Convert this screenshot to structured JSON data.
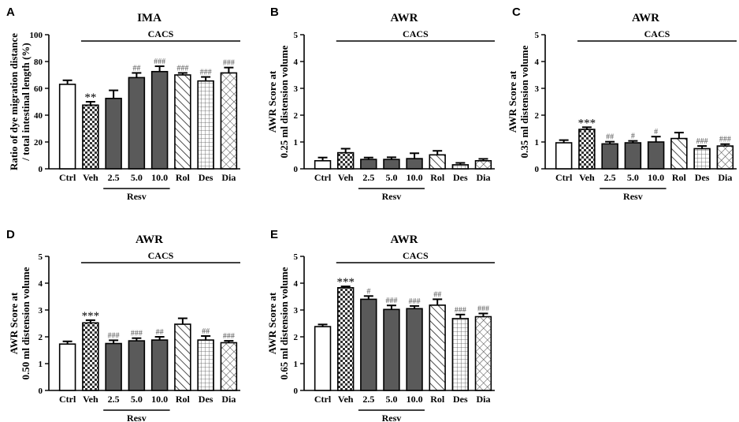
{
  "colors": {
    "dark_bar": "#5a5a5a",
    "outline": "#000000",
    "white": "#ffffff"
  },
  "chart_data": [
    {
      "panel": "A",
      "type": "bar",
      "title": "IMA",
      "ylabel_lines": [
        "Ratio of dye migration distance",
        "/ total intestinal length (%)"
      ],
      "ylim": [
        0,
        100
      ],
      "yticks": [
        "0",
        "20",
        "40",
        "60",
        "80",
        "100"
      ],
      "ytick_values": [
        0,
        20,
        40,
        60,
        80,
        100
      ],
      "categories": [
        "Ctrl",
        "Veh",
        "2.5",
        "5.0",
        "10.0",
        "Rol",
        "Des",
        "Dia"
      ],
      "patterns": [
        "white",
        "check",
        "dark",
        "dark",
        "dark",
        "hatch",
        "grid",
        "cross"
      ],
      "values": [
        63,
        47.5,
        52.5,
        68,
        72.5,
        70,
        65.5,
        71.5
      ],
      "errors": [
        3,
        2.5,
        6,
        3.5,
        4,
        1.5,
        3,
        4
      ],
      "significance": [
        "",
        "**",
        "",
        "##",
        "###",
        "###",
        "###",
        "###"
      ],
      "group_label": "CACS",
      "group_span": [
        1,
        7
      ],
      "sub_label": "Resv",
      "sub_span": [
        2,
        4
      ]
    },
    {
      "panel": "B",
      "type": "bar",
      "title": "AWR",
      "ylabel_lines": [
        "AWR Score at",
        "0.25 ml distension volume"
      ],
      "ylim": [
        0,
        5
      ],
      "yticks": [
        "0",
        "1",
        "2",
        "3",
        "4",
        "5"
      ],
      "ytick_values": [
        0,
        1,
        2,
        3,
        4,
        5
      ],
      "categories": [
        "Ctrl",
        "Veh",
        "2.5",
        "5.0",
        "10.0",
        "Rol",
        "Des",
        "Dia"
      ],
      "patterns": [
        "white",
        "check",
        "dark",
        "dark",
        "dark",
        "hatch",
        "grid",
        "cross"
      ],
      "values": [
        0.3,
        0.6,
        0.35,
        0.35,
        0.38,
        0.52,
        0.15,
        0.3
      ],
      "errors": [
        0.12,
        0.15,
        0.07,
        0.08,
        0.2,
        0.15,
        0.07,
        0.07
      ],
      "significance": [
        "",
        "",
        "",
        "",
        "",
        "",
        "",
        ""
      ],
      "group_label": "CACS",
      "group_span": [
        1,
        7
      ],
      "sub_label": "Resv",
      "sub_span": [
        2,
        4
      ]
    },
    {
      "panel": "C",
      "type": "bar",
      "title": "AWR",
      "ylabel_lines": [
        "AWR Score at",
        "0.35 ml distension volume"
      ],
      "ylim": [
        0,
        5
      ],
      "yticks": [
        "0",
        "1",
        "2",
        "3",
        "4",
        "5"
      ],
      "ytick_values": [
        0,
        1,
        2,
        3,
        4,
        5
      ],
      "categories": [
        "Ctrl",
        "Veh",
        "2.5",
        "5.0",
        "10.0",
        "Rol",
        "Des",
        "Dia"
      ],
      "patterns": [
        "white",
        "check",
        "dark",
        "dark",
        "dark",
        "hatch",
        "grid",
        "cross"
      ],
      "values": [
        0.97,
        1.47,
        0.93,
        0.97,
        1.0,
        1.13,
        0.75,
        0.85
      ],
      "errors": [
        0.1,
        0.08,
        0.08,
        0.07,
        0.2,
        0.22,
        0.1,
        0.07
      ],
      "significance": [
        "",
        "***",
        "##",
        "#",
        "#",
        "",
        "###",
        "###"
      ],
      "group_label": "CACS",
      "group_span": [
        1,
        7
      ],
      "sub_label": "Resv",
      "sub_span": [
        2,
        4
      ]
    },
    {
      "panel": "D",
      "type": "bar",
      "title": "AWR",
      "ylabel_lines": [
        "AWR Score at",
        "0.50 ml distension volume"
      ],
      "ylim": [
        0,
        5
      ],
      "yticks": [
        "0",
        "1",
        "2",
        "3",
        "4",
        "5"
      ],
      "ytick_values": [
        0,
        1,
        2,
        3,
        4,
        5
      ],
      "categories": [
        "Ctrl",
        "Veh",
        "2.5",
        "5.0",
        "10.0",
        "Rol",
        "Des",
        "Dia"
      ],
      "patterns": [
        "white",
        "check",
        "dark",
        "dark",
        "dark",
        "hatch",
        "grid",
        "cross"
      ],
      "values": [
        1.73,
        2.52,
        1.75,
        1.85,
        1.88,
        2.47,
        1.88,
        1.78
      ],
      "errors": [
        0.1,
        0.1,
        0.12,
        0.1,
        0.12,
        0.22,
        0.15,
        0.07
      ],
      "significance": [
        "",
        "***",
        "###",
        "###",
        "##",
        "",
        "##",
        "###"
      ],
      "group_label": "CACS",
      "group_span": [
        1,
        7
      ],
      "sub_label": "Resv",
      "sub_span": [
        2,
        4
      ]
    },
    {
      "panel": "E",
      "type": "bar",
      "title": "AWR",
      "ylabel_lines": [
        "AWR Score at",
        "0.65 ml distension volume"
      ],
      "ylim": [
        0,
        5
      ],
      "yticks": [
        "0",
        "1",
        "2",
        "3",
        "4",
        "5"
      ],
      "ytick_values": [
        0,
        1,
        2,
        3,
        4,
        5
      ],
      "categories": [
        "Ctrl",
        "Veh",
        "2.5",
        "5.0",
        "10.0",
        "Rol",
        "Des",
        "Dia"
      ],
      "patterns": [
        "white",
        "check",
        "dark",
        "dark",
        "dark",
        "hatch",
        "grid",
        "cross"
      ],
      "values": [
        2.38,
        3.83,
        3.4,
        3.02,
        3.05,
        3.18,
        2.68,
        2.75
      ],
      "errors": [
        0.08,
        0.05,
        0.12,
        0.15,
        0.1,
        0.22,
        0.15,
        0.12
      ],
      "significance": [
        "",
        "***",
        "#",
        "###",
        "###",
        "##",
        "###",
        "###"
      ],
      "group_label": "CACS",
      "group_span": [
        1,
        7
      ],
      "sub_label": "Resv",
      "sub_span": [
        2,
        4
      ]
    }
  ]
}
